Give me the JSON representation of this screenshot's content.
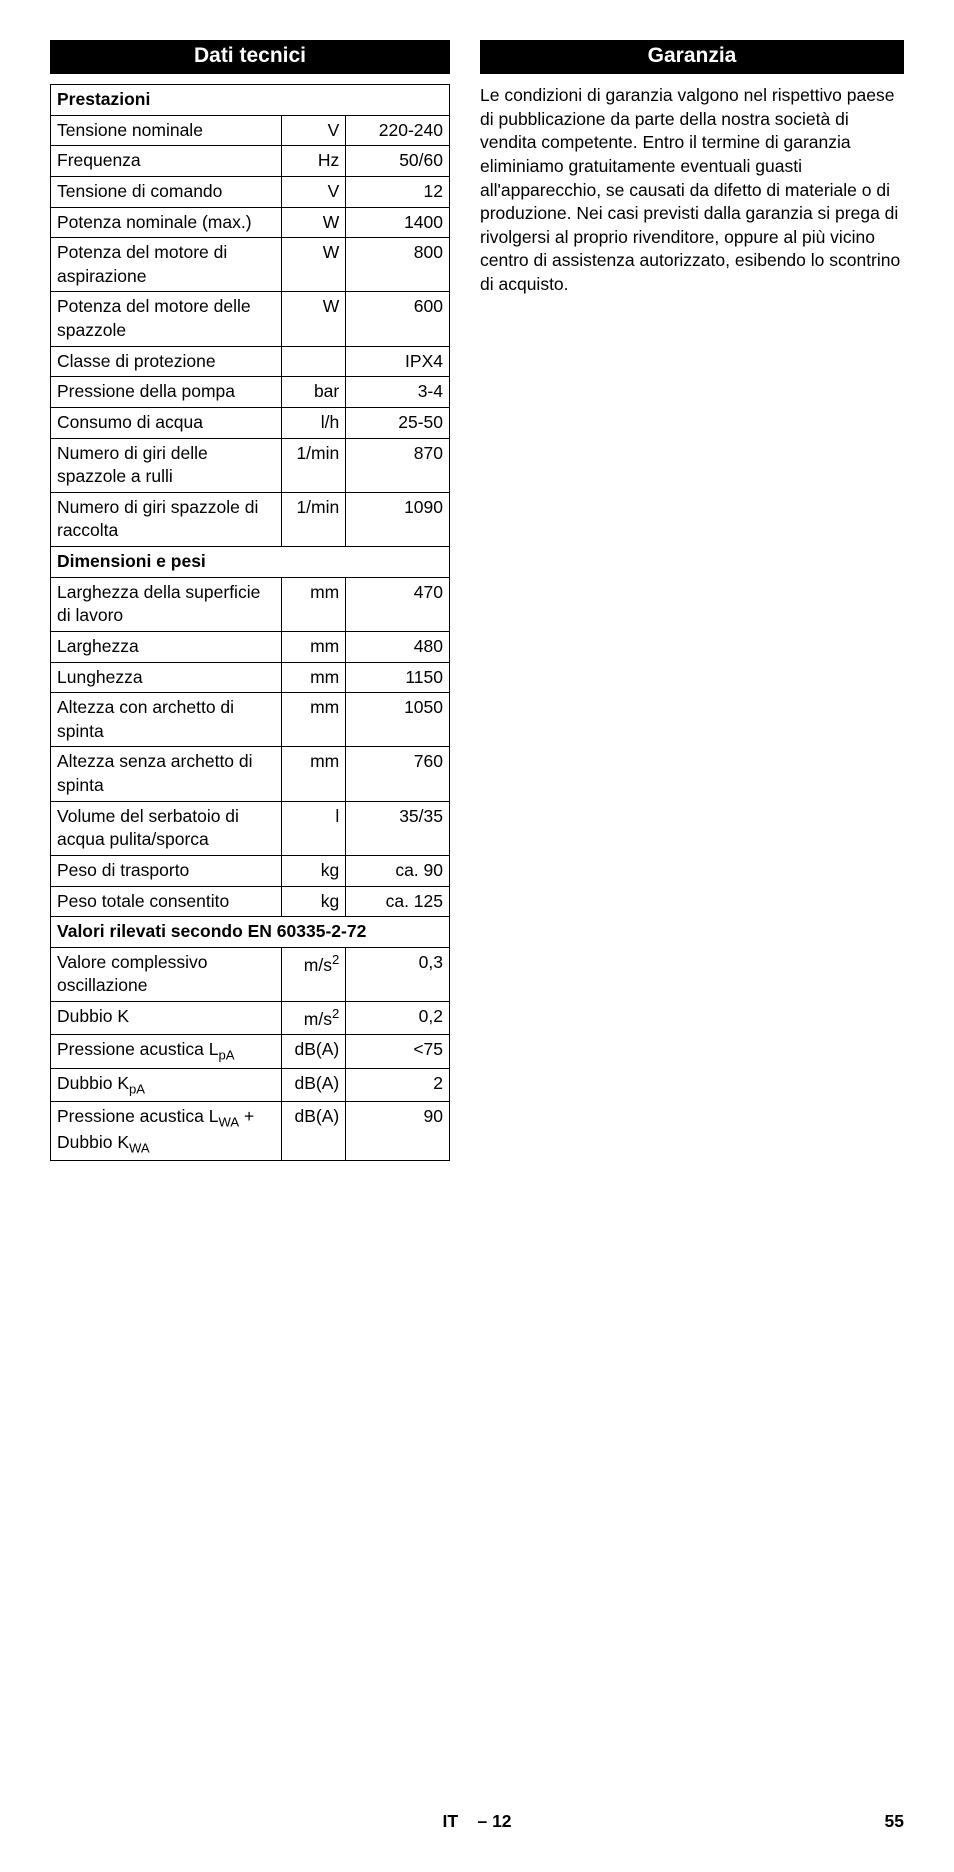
{
  "left": {
    "heading": "Dati tecnici",
    "sections": [
      {
        "title": "Prestazioni",
        "rows": [
          {
            "label": "Tensione nominale",
            "unit": "V",
            "value": "220-240"
          },
          {
            "label": "Frequenza",
            "unit": "Hz",
            "value": "50/60"
          },
          {
            "label": "Tensione di comando",
            "unit": "V",
            "value": "12"
          },
          {
            "label": "Potenza nominale (max.)",
            "unit": "W",
            "value": "1400"
          },
          {
            "label": "Potenza del motore di aspirazione",
            "unit": "W",
            "value": "800"
          },
          {
            "label": "Potenza del motore delle spazzole",
            "unit": "W",
            "value": "600"
          },
          {
            "label": "Classe di protezione",
            "unit": "",
            "value": "IPX4"
          },
          {
            "label": "Pressione della pompa",
            "unit": "bar",
            "value": "3-4"
          },
          {
            "label": "Consumo di acqua",
            "unit": "l/h",
            "value": "25-50"
          },
          {
            "label": "Numero di giri delle spazzole a rulli",
            "unit": "1/min",
            "value": "870"
          },
          {
            "label": "Numero di giri spazzole di raccolta",
            "unit": "1/min",
            "value": "1090"
          }
        ]
      },
      {
        "title": "Dimensioni e pesi",
        "rows": [
          {
            "label": "Larghezza della superficie di lavoro",
            "unit": "mm",
            "value": "470"
          },
          {
            "label": "Larghezza",
            "unit": "mm",
            "value": "480"
          },
          {
            "label": "Lunghezza",
            "unit": "mm",
            "value": "1150"
          },
          {
            "label": "Altezza con archetto di spinta",
            "unit": "mm",
            "value": "1050"
          },
          {
            "label": "Altezza senza archetto di spinta",
            "unit": "mm",
            "value": "760"
          },
          {
            "label": "Volume del serbatoio di acqua pulita/sporca",
            "unit": "l",
            "value": "35/35"
          },
          {
            "label": "Peso di trasporto",
            "unit": "kg",
            "value": "ca. 90"
          },
          {
            "label": "Peso totale consentito",
            "unit": "kg",
            "value": "ca. 125"
          }
        ]
      },
      {
        "title": "Valori rilevati secondo EN 60335-2-72",
        "rows": [
          {
            "label": "Valore complessivo oscillazione",
            "unit": "m/s<sup>2</sup>",
            "unit_html": true,
            "value": "0,3"
          },
          {
            "label": "Dubbio K",
            "unit": "m/s<sup>2</sup>",
            "unit_html": true,
            "value": "0,2"
          },
          {
            "label": "Pressione acustica L<sub>pA</sub>",
            "label_html": true,
            "unit": "dB(A)",
            "value": "<75"
          },
          {
            "label": "Dubbio K<sub>pA</sub>",
            "label_html": true,
            "unit": "dB(A)",
            "value": "2"
          },
          {
            "label": "Pressione acustica L<sub>WA</sub> + Dubbio K<sub>WA</sub>",
            "label_html": true,
            "unit": "dB(A)",
            "value": "90"
          }
        ]
      }
    ]
  },
  "right": {
    "heading": "Garanzia",
    "body": "Le condizioni di garanzia valgono nel rispettivo paese di pubblicazione da parte della nostra società di vendita competente. Entro il termine di garanzia eliminiamo gratuitamente eventuali guasti all'apparecchio, se causati da difetto di materiale o di produzione. Nei casi previsti dalla garanzia si prega di rivolgersi al proprio rivenditore, oppure al più vicino centro di assistenza autorizzato, esibendo lo scontrino di acquisto."
  },
  "footer": {
    "center_prefix": "IT",
    "center_suffix": "– 12",
    "page": "55"
  }
}
